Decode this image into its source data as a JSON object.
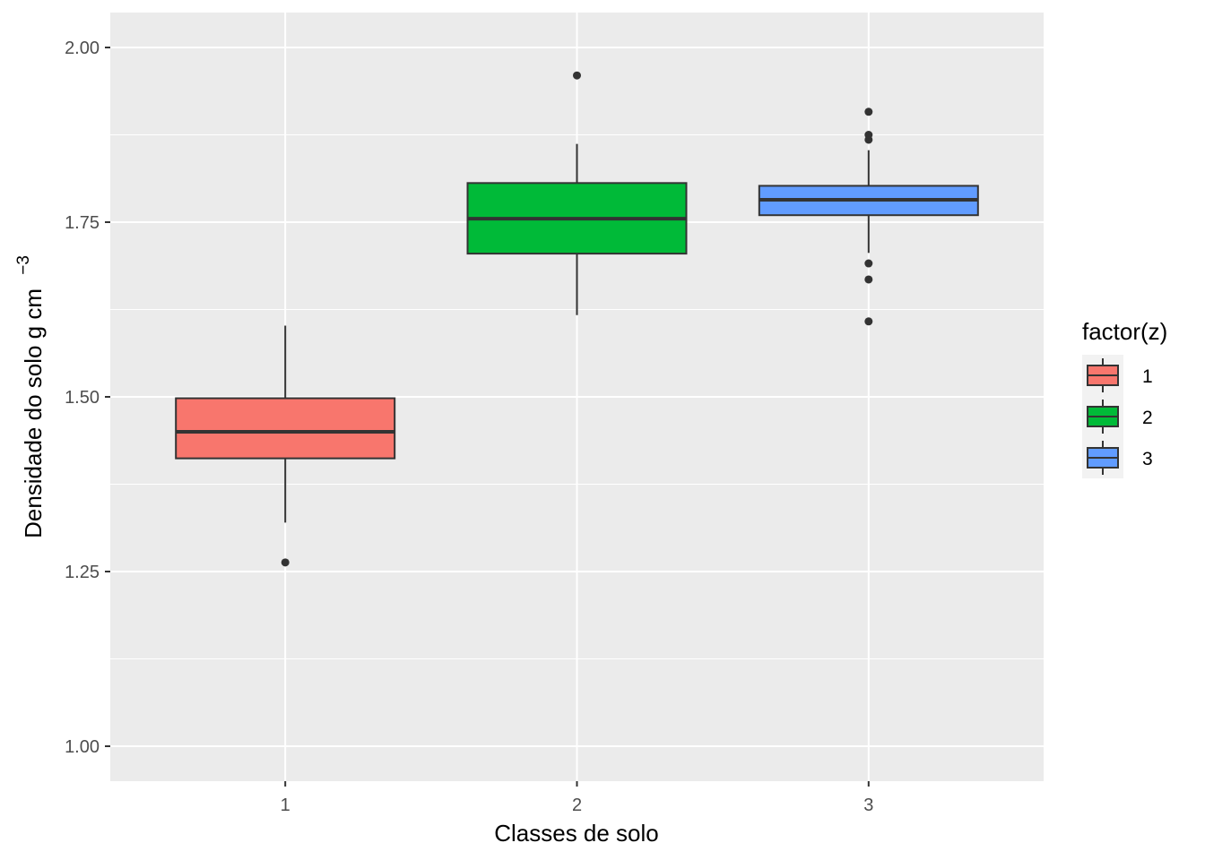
{
  "chart_data": {
    "type": "boxplot",
    "xlabel": "Classes de solo",
    "ylabel": "Densidade do solo g cm",
    "ylabel_superscript": "−3",
    "ylim": [
      0.95,
      2.05
    ],
    "yticks": [
      1.0,
      1.25,
      1.5,
      1.75,
      2.0
    ],
    "ytick_labels": [
      "1.00",
      "1.25",
      "1.50",
      "1.75",
      "2.00"
    ],
    "categories": [
      "1",
      "2",
      "3"
    ],
    "grid": true,
    "legend": {
      "title": "factor(z)",
      "position": "right",
      "entries": [
        "1",
        "2",
        "3"
      ]
    },
    "series": [
      {
        "category": "1",
        "color": "#F8766D",
        "min": 1.32,
        "q1": 1.412,
        "median": 1.45,
        "q3": 1.498,
        "max": 1.602,
        "outliers": [
          1.263
        ]
      },
      {
        "category": "2",
        "color": "#00BA38",
        "min": 1.617,
        "q1": 1.705,
        "median": 1.755,
        "q3": 1.806,
        "max": 1.862,
        "outliers": [
          1.96
        ]
      },
      {
        "category": "3",
        "color": "#619CFF",
        "min": 1.706,
        "q1": 1.76,
        "median": 1.782,
        "q3": 1.802,
        "max": 1.853,
        "outliers": [
          1.608,
          1.668,
          1.691,
          1.868,
          1.875,
          1.908
        ]
      }
    ]
  }
}
